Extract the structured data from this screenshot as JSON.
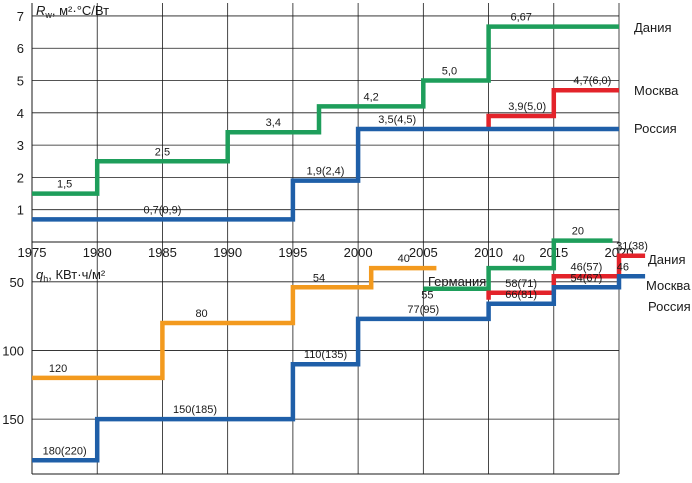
{
  "chart_data": [
    {
      "type": "line",
      "step": true,
      "ylabel_symbol": "R",
      "ylabel_sub": "w",
      "ylabel_unit": ", м²·°С/Вт",
      "x_ticks": [
        "1975",
        "1980",
        "1985",
        "1990",
        "1995",
        "2000",
        "2005",
        "2010",
        "2015",
        "2020"
      ],
      "xlim": [
        1975,
        2020
      ],
      "y_ticks": [
        "1",
        "2",
        "3",
        "4",
        "5",
        "6",
        "7"
      ],
      "ylim": [
        0,
        7.4
      ],
      "grid": true,
      "series": [
        {
          "name": "Дания",
          "color": "#1e9e5b",
          "points": [
            [
              1975,
              1.5
            ],
            [
              1980,
              1.5
            ],
            [
              1980,
              2.5
            ],
            [
              1990,
              2.5
            ],
            [
              1990,
              3.4
            ],
            [
              1997,
              3.4
            ],
            [
              1997,
              4.2
            ],
            [
              2005,
              4.2
            ],
            [
              2005,
              5.0
            ],
            [
              2010,
              5.0
            ],
            [
              2010,
              6.67
            ],
            [
              2020,
              6.67
            ]
          ],
          "labels": [
            {
              "text": "1,5",
              "x": 1977.5,
              "y": 1.5
            },
            {
              "text": "2,5",
              "x": 1985,
              "y": 2.5
            },
            {
              "text": "3,4",
              "x": 1993.5,
              "y": 3.4
            },
            {
              "text": "4,2",
              "x": 2001,
              "y": 4.2
            },
            {
              "text": "5,0",
              "x": 2007,
              "y": 5.0
            },
            {
              "text": "6,67",
              "x": 2012.5,
              "y": 6.67
            }
          ]
        },
        {
          "name": "Москва",
          "color": "#e3232a",
          "points": [
            [
              2010,
              3.5
            ],
            [
              2010,
              3.9
            ],
            [
              2015,
              3.9
            ],
            [
              2015,
              4.7
            ],
            [
              2020,
              4.7
            ]
          ],
          "labels": [
            {
              "text": "3,9(5,0)",
              "x": 2012.5,
              "y": 3.9
            },
            {
              "text": "4,7(6,0)",
              "x": 2017.5,
              "y": 4.7
            }
          ]
        },
        {
          "name": "Россия",
          "color": "#1f5fa8",
          "points": [
            [
              1975,
              0.7
            ],
            [
              1995,
              0.7
            ],
            [
              1995,
              1.9
            ],
            [
              2000,
              1.9
            ],
            [
              2000,
              3.5
            ],
            [
              2020,
              3.5
            ]
          ],
          "labels": [
            {
              "text": "0,7(0,9)",
              "x": 1985,
              "y": 0.7
            },
            {
              "text": "1,9(2,4)",
              "x": 1997.5,
              "y": 1.9
            },
            {
              "text": "3,5(4,5)",
              "x": 2003,
              "y": 3.5
            }
          ]
        }
      ]
    },
    {
      "type": "line",
      "step": true,
      "ylabel_symbol": "q",
      "ylabel_sub": "h",
      "ylabel_unit": ", КВт·ч/м²",
      "x_ticks": [],
      "xlim": [
        1975,
        2020
      ],
      "y_ticks": [
        "50",
        "100",
        "150"
      ],
      "ylim": [
        21,
        190
      ],
      "y_inverted": true,
      "grid": true,
      "series": [
        {
          "name": "Германия",
          "color": "#f39a1e",
          "points": [
            [
              1975,
              120
            ],
            [
              1985,
              120
            ],
            [
              1985,
              80
            ],
            [
              1995,
              80
            ],
            [
              1995,
              54
            ],
            [
              2001,
              54
            ],
            [
              2001,
              40
            ],
            [
              2006,
              40
            ]
          ],
          "labels": [
            {
              "text": "120",
              "x": 1977,
              "y": 120
            },
            {
              "text": "80",
              "x": 1988,
              "y": 80
            },
            {
              "text": "54",
              "x": 1997,
              "y": 54
            },
            {
              "text": "40",
              "x": 2003.5,
              "y": 40
            }
          ]
        },
        {
          "name": "Дания",
          "color": "#1e9e5b",
          "points": [
            [
              2005,
              55
            ],
            [
              2010,
              55
            ],
            [
              2010,
              40
            ],
            [
              2015,
              40
            ],
            [
              2015,
              20
            ],
            [
              2019.5,
              20
            ]
          ],
          "labels": [
            {
              "text": "55",
              "x": 2005,
              "y": 55
            },
            {
              "text": "40",
              "x": 2012,
              "y": 40
            },
            {
              "text": "20",
              "x": 2017,
              "y": 20
            }
          ]
        },
        {
          "name": "Москва",
          "color": "#e3232a",
          "points": [
            [
              2010,
              63
            ],
            [
              2010,
              58
            ],
            [
              2015,
              58
            ],
            [
              2015,
              46
            ],
            [
              2020,
              46
            ],
            [
              2020,
              31
            ],
            [
              2022,
              31
            ]
          ],
          "labels": [
            {
              "text": "58(71)",
              "x": 2012.5,
              "y": 58
            },
            {
              "text": "46(57)",
              "x": 2017.5,
              "y": 46
            },
            {
              "text": "31(38)",
              "x": 2021,
              "y": 31
            }
          ]
        },
        {
          "name": "Россия",
          "color": "#1f5fa8",
          "points": [
            [
              1975,
              180
            ],
            [
              1980,
              180
            ],
            [
              1980,
              150
            ],
            [
              1995,
              150
            ],
            [
              1995,
              110
            ],
            [
              2000,
              110
            ],
            [
              2000,
              77
            ],
            [
              2010,
              77
            ],
            [
              2010,
              66
            ],
            [
              2015,
              66
            ],
            [
              2015,
              54
            ],
            [
              2020,
              54
            ],
            [
              2020,
              46
            ],
            [
              2022,
              46
            ]
          ],
          "labels": [
            {
              "text": "180(220)",
              "x": 1977.5,
              "y": 180
            },
            {
              "text": "150(185)",
              "x": 1987.5,
              "y": 150
            },
            {
              "text": "110(135)",
              "x": 1997.5,
              "y": 110
            },
            {
              "text": "77(95)",
              "x": 2005,
              "y": 77
            },
            {
              "text": "66(81)",
              "x": 2012.5,
              "y": 66
            },
            {
              "text": "54(67)",
              "x": 2017.5,
              "y": 54
            },
            {
              "text": "46",
              "x": 2020.3,
              "y": 46
            }
          ]
        }
      ]
    }
  ]
}
